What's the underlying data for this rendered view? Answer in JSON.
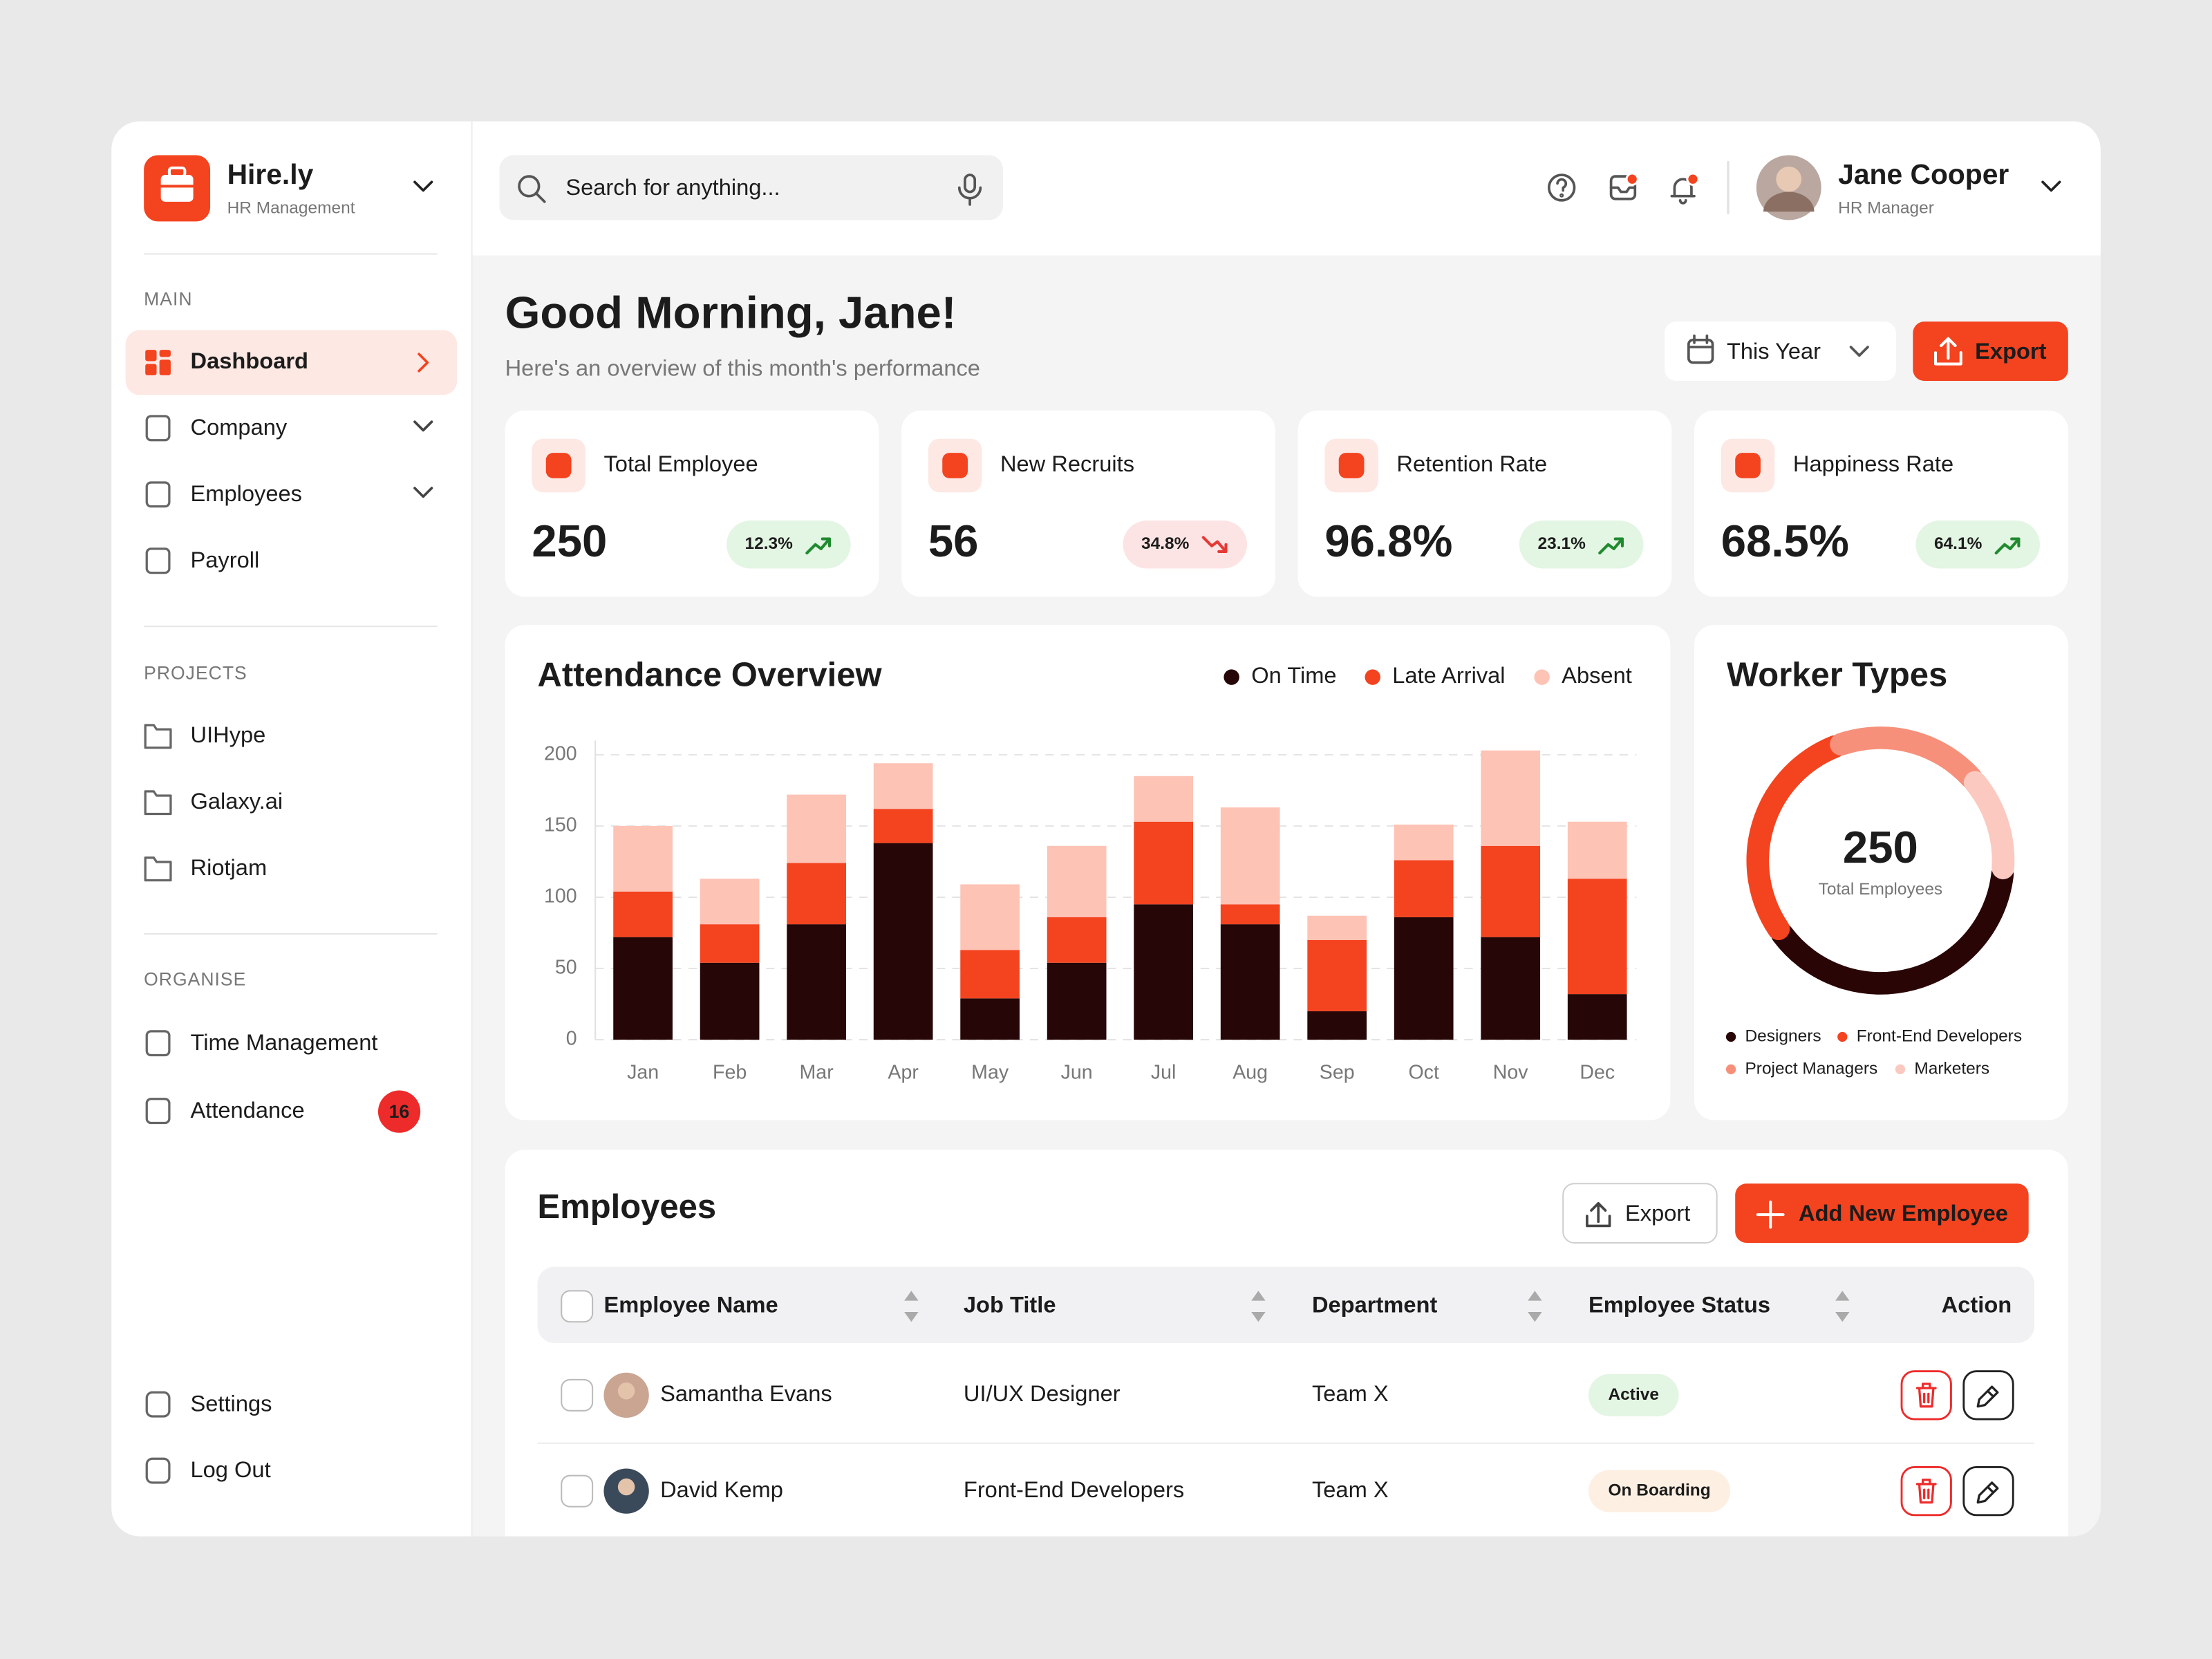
{
  "sidebar": {
    "brand": "Hire.ly",
    "brand_sub": "HR Management",
    "sections": [
      {
        "title": "MAIN",
        "items": [
          {
            "label": "Dashboard",
            "active": true
          },
          {
            "label": "Company",
            "expandable": true
          },
          {
            "label": "Employees",
            "expandable": true
          },
          {
            "label": "Payroll"
          }
        ]
      },
      {
        "title": "PROJECTS",
        "items": [
          {
            "label": "UIHype"
          },
          {
            "label": "Galaxy.ai"
          },
          {
            "label": "Riotjam"
          }
        ]
      },
      {
        "title": "ORGANISE",
        "items": [
          {
            "label": "Time Management"
          },
          {
            "label": "Attendance",
            "badge": 16
          }
        ]
      }
    ],
    "bottom": [
      "Settings",
      "Log Out"
    ]
  },
  "header": {
    "search_placeholder": "Search for anything...",
    "user_name": "Jane Cooper",
    "user_role": "HR Manager"
  },
  "greeting": {
    "title": "Good Morning, Jane!",
    "subtitle": "Here's an overview of this month's performance",
    "period": "This Year",
    "export": "Export"
  },
  "stats": [
    {
      "label": "Total Employee",
      "value": "250",
      "change": "12.3%",
      "trend": "up"
    },
    {
      "label": "New Recruits",
      "value": "56",
      "change": "34.8%",
      "trend": "down"
    },
    {
      "label": "Retention Rate",
      "value": "96.8%",
      "change": "23.1%",
      "trend": "up"
    },
    {
      "label": "Happiness Rate",
      "value": "68.5%",
      "change": "64.1%",
      "trend": "up"
    }
  ],
  "chart_data": [
    {
      "type": "bar",
      "stacked": true,
      "title": "Attendance Overview",
      "categories": [
        "Jan",
        "Feb",
        "Mar",
        "Apr",
        "May",
        "Jun",
        "Jul",
        "Aug",
        "Sep",
        "Oct",
        "Nov",
        "Dec"
      ],
      "series": [
        {
          "name": "On Time",
          "color": "#260606",
          "values": [
            72,
            54,
            81,
            138,
            29,
            54,
            95,
            81,
            20,
            86,
            72,
            32
          ]
        },
        {
          "name": "Late Arrival",
          "color": "#f4431f",
          "values": [
            32,
            27,
            43,
            24,
            34,
            32,
            58,
            14,
            50,
            40,
            64,
            81
          ]
        },
        {
          "name": "Absent",
          "color": "#fdc3b5",
          "values": [
            46,
            32,
            48,
            32,
            46,
            50,
            32,
            68,
            17,
            25,
            67,
            40
          ]
        }
      ],
      "ylim": [
        0,
        200
      ],
      "yticks": [
        0,
        50,
        100,
        150,
        200
      ],
      "grid": true
    },
    {
      "type": "donut",
      "title": "Worker Types",
      "center_value": "250",
      "center_label": "Total Employees",
      "categories": [
        "Designers",
        "Front-End Developers",
        "Project Managers",
        "Marketers"
      ],
      "values": [
        97,
        73,
        48,
        32
      ],
      "colors": [
        "#2a0505",
        "#f4431f",
        "#f7907a",
        "#fbc9bf"
      ]
    }
  ],
  "employees": {
    "title": "Employees",
    "export": "Export",
    "add": "Add New Employee",
    "columns": [
      "Employee Name",
      "Job Title",
      "Department",
      "Employee Status",
      "Action"
    ],
    "rows": [
      {
        "name": "Samantha Evans",
        "job_title": "UI/UX Designer",
        "department": "Team X",
        "status": "Active",
        "status_color": "#1f8a2e",
        "status_bg": "#e3f5e3"
      },
      {
        "name": "David Kemp",
        "job_title": "Front-End Developers",
        "department": "Team X",
        "status": "On Boarding",
        "status_color": "#c07a00",
        "status_bg": "#fdf0e3"
      }
    ]
  }
}
